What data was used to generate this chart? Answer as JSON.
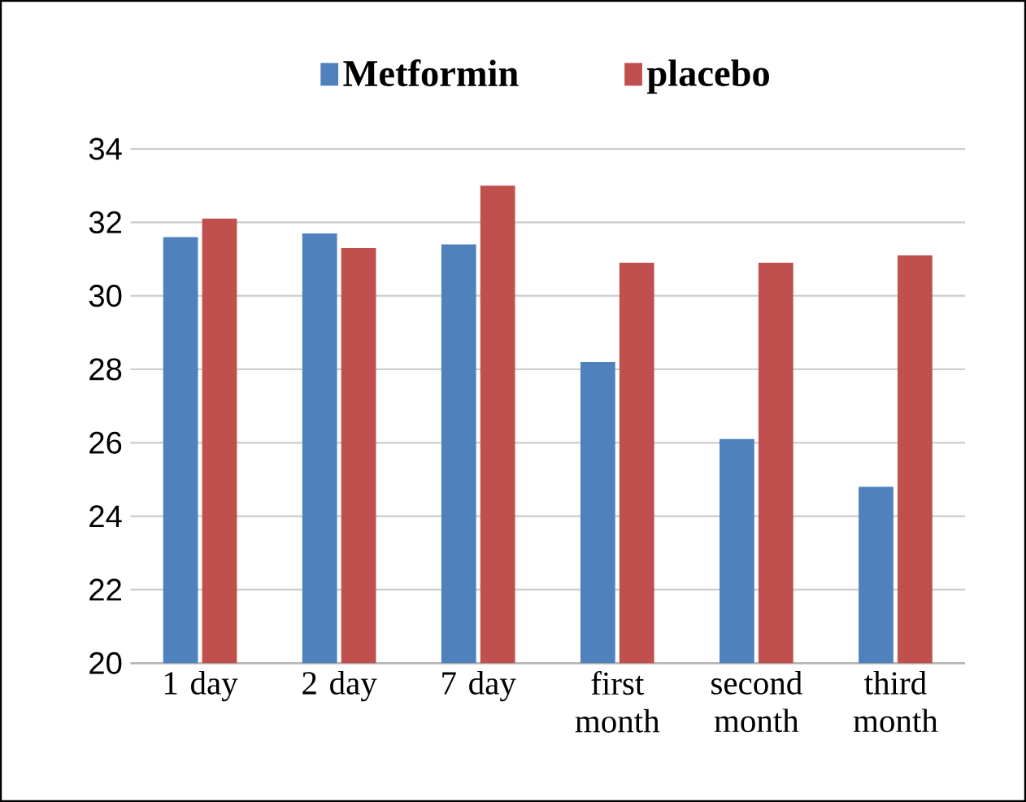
{
  "chart_data": {
    "type": "bar",
    "categories": [
      "1 day",
      "2 day",
      "7 day",
      "first month",
      "second month",
      "third month"
    ],
    "series": [
      {
        "name": "Metformin",
        "color": "#4f81bd",
        "values": [
          31.6,
          31.7,
          31.4,
          28.2,
          26.1,
          24.8
        ]
      },
      {
        "name": "placebo",
        "color": "#c0504d",
        "values": [
          32.1,
          31.3,
          33.0,
          30.9,
          30.9,
          31.1
        ]
      }
    ],
    "ylim": [
      20,
      34
    ],
    "yticks": [
      20,
      22,
      24,
      26,
      28,
      30,
      32,
      34
    ],
    "grid": "y",
    "legend": "top"
  }
}
